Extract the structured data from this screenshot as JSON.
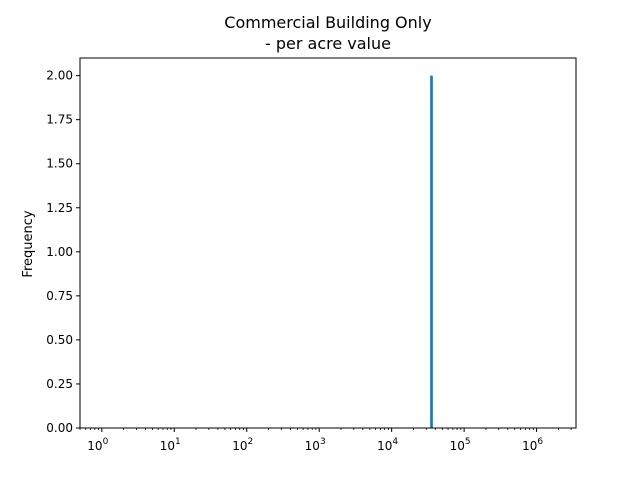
{
  "chart_data": {
    "type": "histogram",
    "title_line1": "Commercial Building Only",
    "title_line2": "- per acre value",
    "xlabel": "",
    "ylabel": "Frequency",
    "x_scale": "log",
    "xlim": [
      0.5,
      3500000
    ],
    "ylim": [
      0,
      2.1
    ],
    "y_ticks": [
      {
        "value": 0.0,
        "label": "0.00"
      },
      {
        "value": 0.25,
        "label": "0.25"
      },
      {
        "value": 0.5,
        "label": "0.50"
      },
      {
        "value": 0.75,
        "label": "0.75"
      },
      {
        "value": 1.0,
        "label": "1.00"
      },
      {
        "value": 1.25,
        "label": "1.25"
      },
      {
        "value": 1.5,
        "label": "1.50"
      },
      {
        "value": 1.75,
        "label": "1.75"
      },
      {
        "value": 2.0,
        "label": "2.00"
      }
    ],
    "x_ticks": [
      {
        "value": 1,
        "base": "10",
        "exp": "0"
      },
      {
        "value": 10,
        "base": "10",
        "exp": "1"
      },
      {
        "value": 100,
        "base": "10",
        "exp": "2"
      },
      {
        "value": 1000,
        "base": "10",
        "exp": "3"
      },
      {
        "value": 10000,
        "base": "10",
        "exp": "4"
      },
      {
        "value": 100000,
        "base": "10",
        "exp": "5"
      },
      {
        "value": 1000000,
        "base": "10",
        "exp": "6"
      }
    ],
    "bars": [
      {
        "x_start": 34000,
        "x_end": 37000,
        "count": 2
      }
    ],
    "bar_color": "#1f77b4",
    "grid": false,
    "legend": "none"
  }
}
